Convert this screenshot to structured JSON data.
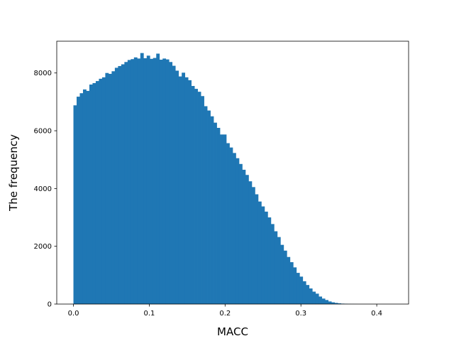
{
  "chart_data": {
    "type": "histogram",
    "title": "",
    "xlabel": "MACC",
    "ylabel": "The frequency",
    "xlim": [
      -0.022,
      0.442
    ],
    "ylim": [
      0,
      9100
    ],
    "grid": false,
    "bar_color": "#1f77b4",
    "bin_start": 0.0,
    "bin_width": 0.0042,
    "counts": [
      6880,
      7180,
      7300,
      7430,
      7380,
      7600,
      7650,
      7720,
      7800,
      7850,
      8000,
      7970,
      8060,
      8180,
      8240,
      8300,
      8380,
      8450,
      8480,
      8540,
      8500,
      8690,
      8510,
      8600,
      8490,
      8520,
      8670,
      8460,
      8500,
      8470,
      8380,
      8250,
      8080,
      7880,
      8010,
      7850,
      7750,
      7550,
      7450,
      7350,
      7200,
      6850,
      6700,
      6500,
      6280,
      6100,
      5870,
      5870,
      5570,
      5420,
      5230,
      5050,
      4850,
      4650,
      4470,
      4250,
      4050,
      3800,
      3550,
      3380,
      3200,
      3000,
      2770,
      2520,
      2320,
      2050,
      1850,
      1630,
      1450,
      1270,
      1080,
      950,
      790,
      660,
      540,
      430,
      360,
      260,
      190,
      140,
      90,
      60,
      40,
      25,
      15,
      10,
      5,
      3,
      2
    ],
    "x_ticks": [
      0.0,
      0.1,
      0.2,
      0.3,
      0.4
    ],
    "x_tick_labels": [
      "0.0",
      "0.1",
      "0.2",
      "0.3",
      "0.4"
    ],
    "y_ticks": [
      0,
      2000,
      4000,
      6000,
      8000
    ],
    "y_tick_labels": [
      "0",
      "2000",
      "4000",
      "6000",
      "8000"
    ]
  }
}
